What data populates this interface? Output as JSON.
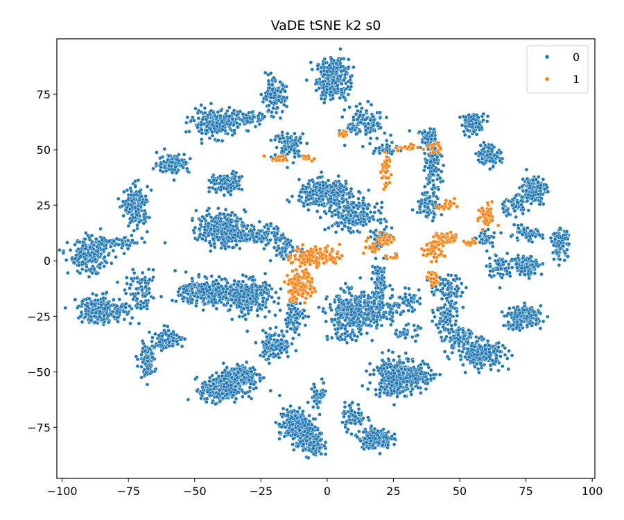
{
  "chart_data": {
    "type": "scatter",
    "title": "VaDE tSNE k2 s0",
    "xlabel": "",
    "ylabel": "",
    "xlim": [
      -102,
      101
    ],
    "ylim": [
      -98,
      100
    ],
    "xticks": [
      -100,
      -75,
      -50,
      -25,
      0,
      25,
      50,
      75,
      100
    ],
    "yticks": [
      -75,
      -50,
      -25,
      0,
      25,
      50,
      75
    ],
    "xtick_labels": [
      "−100",
      "−75",
      "−50",
      "−25",
      "0",
      "25",
      "50",
      "75",
      "100"
    ],
    "ytick_labels": [
      "−75",
      "−50",
      "−25",
      "0",
      "25",
      "50",
      "75"
    ],
    "grid": false,
    "legend": {
      "placement": "top-right",
      "entries": [
        {
          "label": "0",
          "color": "#1f77b4"
        },
        {
          "label": "1",
          "color": "#ff7f0e"
        }
      ]
    },
    "series": [
      {
        "name": "0",
        "color": "#1f77b4",
        "clusters": [
          [
            2,
            82,
            4,
            6,
            320
          ],
          [
            -42,
            62,
            6,
            4,
            240
          ],
          [
            -30,
            64,
            5,
            2,
            60
          ],
          [
            -20,
            74,
            3,
            5,
            130
          ],
          [
            -14,
            52,
            4,
            4,
            90
          ],
          [
            -58,
            44,
            4,
            3,
            120
          ],
          [
            -72,
            24,
            3,
            6,
            170
          ],
          [
            -90,
            2,
            5,
            5,
            210
          ],
          [
            -80,
            8,
            7,
            2,
            80
          ],
          [
            -85,
            -22,
            6,
            4,
            230
          ],
          [
            -70,
            -15,
            4,
            6,
            90
          ],
          [
            -60,
            -35,
            4,
            3,
            80
          ],
          [
            -68,
            -45,
            2,
            5,
            90
          ],
          [
            -45,
            -14,
            7,
            4,
            320
          ],
          [
            -30,
            -16,
            6,
            5,
            300
          ],
          [
            -40,
            14,
            6,
            5,
            300
          ],
          [
            -25,
            12,
            6,
            3,
            120
          ],
          [
            -15,
            5,
            4,
            3,
            60
          ],
          [
            -38,
            35,
            4,
            3,
            110
          ],
          [
            -40,
            -58,
            5,
            4,
            260
          ],
          [
            -32,
            -52,
            5,
            4,
            160
          ],
          [
            -20,
            -38,
            4,
            4,
            120
          ],
          [
            -13,
            -25,
            3,
            5,
            80
          ],
          [
            -12,
            -74,
            4,
            5,
            240
          ],
          [
            -6,
            -82,
            3,
            4,
            170
          ],
          [
            -3,
            -60,
            2,
            4,
            40
          ],
          [
            18,
            -80,
            4,
            3,
            180
          ],
          [
            10,
            -70,
            3,
            4,
            60
          ],
          [
            0,
            30,
            7,
            4,
            340
          ],
          [
            10,
            20,
            6,
            4,
            200
          ],
          [
            20,
            10,
            3,
            3,
            50
          ],
          [
            15,
            62,
            5,
            5,
            120
          ],
          [
            22,
            50,
            3,
            2,
            40
          ],
          [
            38,
            55,
            2,
            3,
            70
          ],
          [
            40,
            40,
            2,
            8,
            110
          ],
          [
            38,
            25,
            3,
            4,
            70
          ],
          [
            55,
            62,
            3,
            3,
            80
          ],
          [
            61,
            48,
            3,
            3,
            110
          ],
          [
            78,
            32,
            3,
            4,
            170
          ],
          [
            70,
            25,
            4,
            3,
            60
          ],
          [
            75,
            12,
            4,
            2,
            60
          ],
          [
            88,
            8,
            2,
            4,
            110
          ],
          [
            75,
            -2,
            4,
            3,
            110
          ],
          [
            65,
            -2,
            3,
            4,
            60
          ],
          [
            60,
            10,
            3,
            2,
            40
          ],
          [
            75,
            -25,
            4,
            3,
            160
          ],
          [
            70,
            -29,
            2,
            1,
            30
          ],
          [
            8,
            -25,
            5,
            7,
            310
          ],
          [
            18,
            -22,
            6,
            5,
            180
          ],
          [
            20,
            -10,
            2,
            6,
            80
          ],
          [
            25,
            -52,
            5,
            6,
            260
          ],
          [
            33,
            -52,
            5,
            4,
            150
          ],
          [
            30,
            -32,
            3,
            2,
            40
          ],
          [
            45,
            -25,
            3,
            6,
            90
          ],
          [
            58,
            -42,
            6,
            4,
            220
          ],
          [
            50,
            -35,
            4,
            3,
            90
          ],
          [
            45,
            -12,
            4,
            4,
            70
          ],
          [
            30,
            -18,
            3,
            3,
            40
          ]
        ]
      },
      {
        "name": "1",
        "color": "#ff7f0e",
        "clusters": [
          [
            -4,
            2,
            6,
            3,
            130
          ],
          [
            -10,
            -8,
            3,
            3,
            50
          ],
          [
            -9,
            -12,
            3,
            3,
            50
          ],
          [
            -12,
            -15,
            2,
            3,
            30
          ],
          [
            22,
            10,
            3,
            2,
            30
          ],
          [
            17,
            6,
            2,
            2,
            20
          ],
          [
            40,
            5,
            3,
            3,
            50
          ],
          [
            45,
            10,
            3,
            2,
            40
          ],
          [
            40,
            -8,
            2,
            2,
            20
          ],
          [
            60,
            20,
            2,
            4,
            50
          ],
          [
            54,
            8,
            2,
            1,
            15
          ],
          [
            22,
            40,
            1,
            6,
            40
          ],
          [
            30,
            51,
            3,
            1,
            20
          ],
          [
            40,
            50,
            2,
            2,
            15
          ],
          [
            45,
            25,
            2,
            2,
            20
          ],
          [
            6,
            57,
            1,
            1,
            10
          ],
          [
            -18,
            46,
            3,
            1,
            15
          ],
          [
            -8,
            46,
            2,
            1,
            10
          ],
          [
            25,
            2,
            2,
            1,
            10
          ]
        ]
      }
    ]
  }
}
